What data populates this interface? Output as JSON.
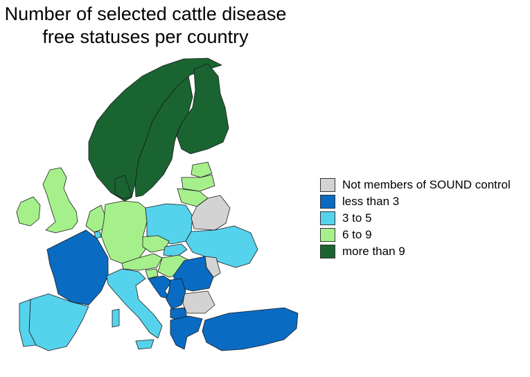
{
  "title": {
    "line1": "Number of selected cattle disease",
    "line2": "free statuses per country"
  },
  "legend": [
    {
      "label": "Not members of SOUND control",
      "color": "#d3d3d3"
    },
    {
      "label": "less than 3",
      "color": "#0a6bc2"
    },
    {
      "label": "3 to 5",
      "color": "#55d2ec"
    },
    {
      "label": "6 to 9",
      "color": "#a6f08c"
    },
    {
      "label": "more than 9",
      "color": "#1a6432"
    }
  ],
  "map": {
    "region": "Europe",
    "countries": [
      {
        "name": "Norway",
        "category": "more than 9"
      },
      {
        "name": "Sweden",
        "category": "more than 9"
      },
      {
        "name": "Finland",
        "category": "more than 9"
      },
      {
        "name": "Denmark",
        "category": "more than 9"
      },
      {
        "name": "United Kingdom",
        "category": "6 to 9"
      },
      {
        "name": "Ireland",
        "category": "6 to 9"
      },
      {
        "name": "Germany",
        "category": "6 to 9"
      },
      {
        "name": "Netherlands",
        "category": "6 to 9"
      },
      {
        "name": "Belgium",
        "category": "6 to 9"
      },
      {
        "name": "Czechia",
        "category": "6 to 9"
      },
      {
        "name": "Austria",
        "category": "6 to 9"
      },
      {
        "name": "Hungary",
        "category": "6 to 9"
      },
      {
        "name": "Slovenia",
        "category": "6 to 9"
      },
      {
        "name": "Estonia",
        "category": "6 to 9"
      },
      {
        "name": "Latvia",
        "category": "6 to 9"
      },
      {
        "name": "Lithuania",
        "category": "6 to 9"
      },
      {
        "name": "Poland",
        "category": "3 to 5"
      },
      {
        "name": "Ukraine",
        "category": "3 to 5"
      },
      {
        "name": "Italy",
        "category": "3 to 5"
      },
      {
        "name": "Spain",
        "category": "3 to 5"
      },
      {
        "name": "Portugal",
        "category": "3 to 5"
      },
      {
        "name": "Slovakia",
        "category": "3 to 5"
      },
      {
        "name": "Luxembourg",
        "category": "3 to 5"
      },
      {
        "name": "France",
        "category": "less than 3"
      },
      {
        "name": "Romania",
        "category": "less than 3"
      },
      {
        "name": "Croatia",
        "category": "less than 3"
      },
      {
        "name": "Bosnia and Herzegovina",
        "category": "less than 3"
      },
      {
        "name": "Serbia",
        "category": "less than 3"
      },
      {
        "name": "Montenegro",
        "category": "less than 3"
      },
      {
        "name": "North Macedonia",
        "category": "less than 3"
      },
      {
        "name": "Albania",
        "category": "less than 3"
      },
      {
        "name": "Greece",
        "category": "less than 3"
      },
      {
        "name": "Turkey",
        "category": "less than 3"
      },
      {
        "name": "Belarus",
        "category": "Not members of SOUND control"
      },
      {
        "name": "Bulgaria",
        "category": "Not members of SOUND control"
      },
      {
        "name": "Moldova",
        "category": "Not members of SOUND control"
      }
    ]
  }
}
